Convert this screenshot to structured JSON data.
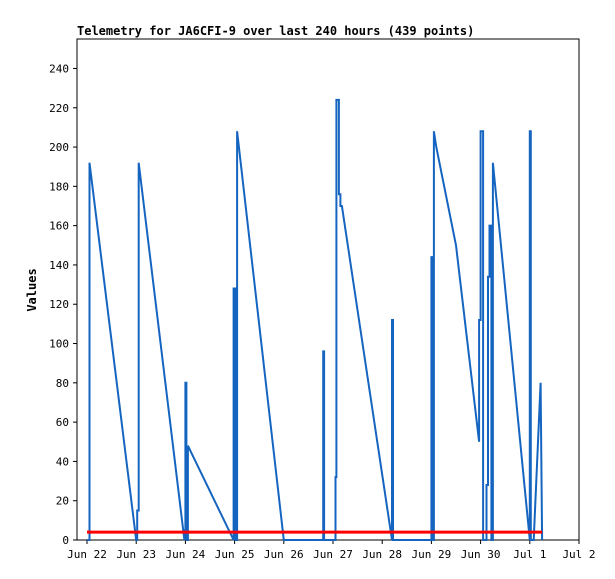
{
  "chart_data": {
    "type": "line",
    "title": "Telemetry for JA6CFI-9 over last 240 hours (439 points)",
    "xlabel": "",
    "ylabel": "Values",
    "x_ticks": [
      "Jun 22",
      "Jun 23",
      "Jun 24",
      "Jun 25",
      "Jun 26",
      "Jun 27",
      "Jun 28",
      "Jun 29",
      "Jun 30",
      "Jul 1",
      "Jul 2"
    ],
    "y_ticks": [
      "0",
      "20",
      "40",
      "60",
      "80",
      "100",
      "120",
      "140",
      "160",
      "180",
      "200",
      "220",
      "240"
    ],
    "xlim": [
      0,
      10
    ],
    "ylim": [
      0,
      255
    ],
    "grid": false,
    "legend": "none",
    "series": [
      {
        "color": "#1565c0",
        "x": [
          0,
          0.05,
          0.05,
          1.0,
          1.02,
          1.02,
          1.05,
          1.05,
          1.98,
          1.98,
          2.0,
          2.0,
          2.02,
          2.02,
          2.05,
          2.05,
          2.98,
          2.98,
          3.02,
          3.02,
          3.05,
          3.05,
          4.0,
          4.0,
          4.8,
          4.8,
          4.82,
          4.82,
          5.05,
          5.05,
          5.07,
          5.07,
          5.12,
          5.12,
          5.15,
          5.15,
          5.18,
          6.2,
          6.2,
          6.22,
          6.22,
          7.0,
          7.0,
          7.02,
          7.02,
          7.05,
          7.05,
          7.1,
          7.5,
          7.97,
          7.97,
          8.0,
          8.0,
          8.05,
          8.05,
          8.12,
          8.12,
          8.15,
          8.15,
          8.18,
          8.18,
          8.22,
          8.22,
          8.25,
          8.25,
          9.0,
          9.0,
          9.02,
          9.02,
          9.08,
          9.08,
          9.22,
          9.22,
          9.25
        ],
        "y": [
          0,
          0,
          192,
          0,
          0,
          15,
          15,
          192,
          0,
          5,
          5,
          80,
          80,
          0,
          0,
          48,
          0,
          128,
          128,
          0,
          0,
          208,
          0,
          0,
          0,
          96,
          96,
          0,
          0,
          32,
          32,
          224,
          224,
          176,
          176,
          170,
          170,
          0,
          112,
          112,
          0,
          0,
          144,
          144,
          0,
          0,
          208,
          200,
          150,
          50,
          112,
          112,
          208,
          208,
          0,
          0,
          28,
          28,
          134,
          134,
          160,
          160,
          0,
          0,
          192,
          0,
          208,
          208,
          0,
          0,
          0,
          80,
          80,
          0
        ]
      },
      {
        "color": "#ff0000",
        "x": [
          0,
          9.25
        ],
        "y": [
          4,
          4
        ]
      }
    ]
  }
}
